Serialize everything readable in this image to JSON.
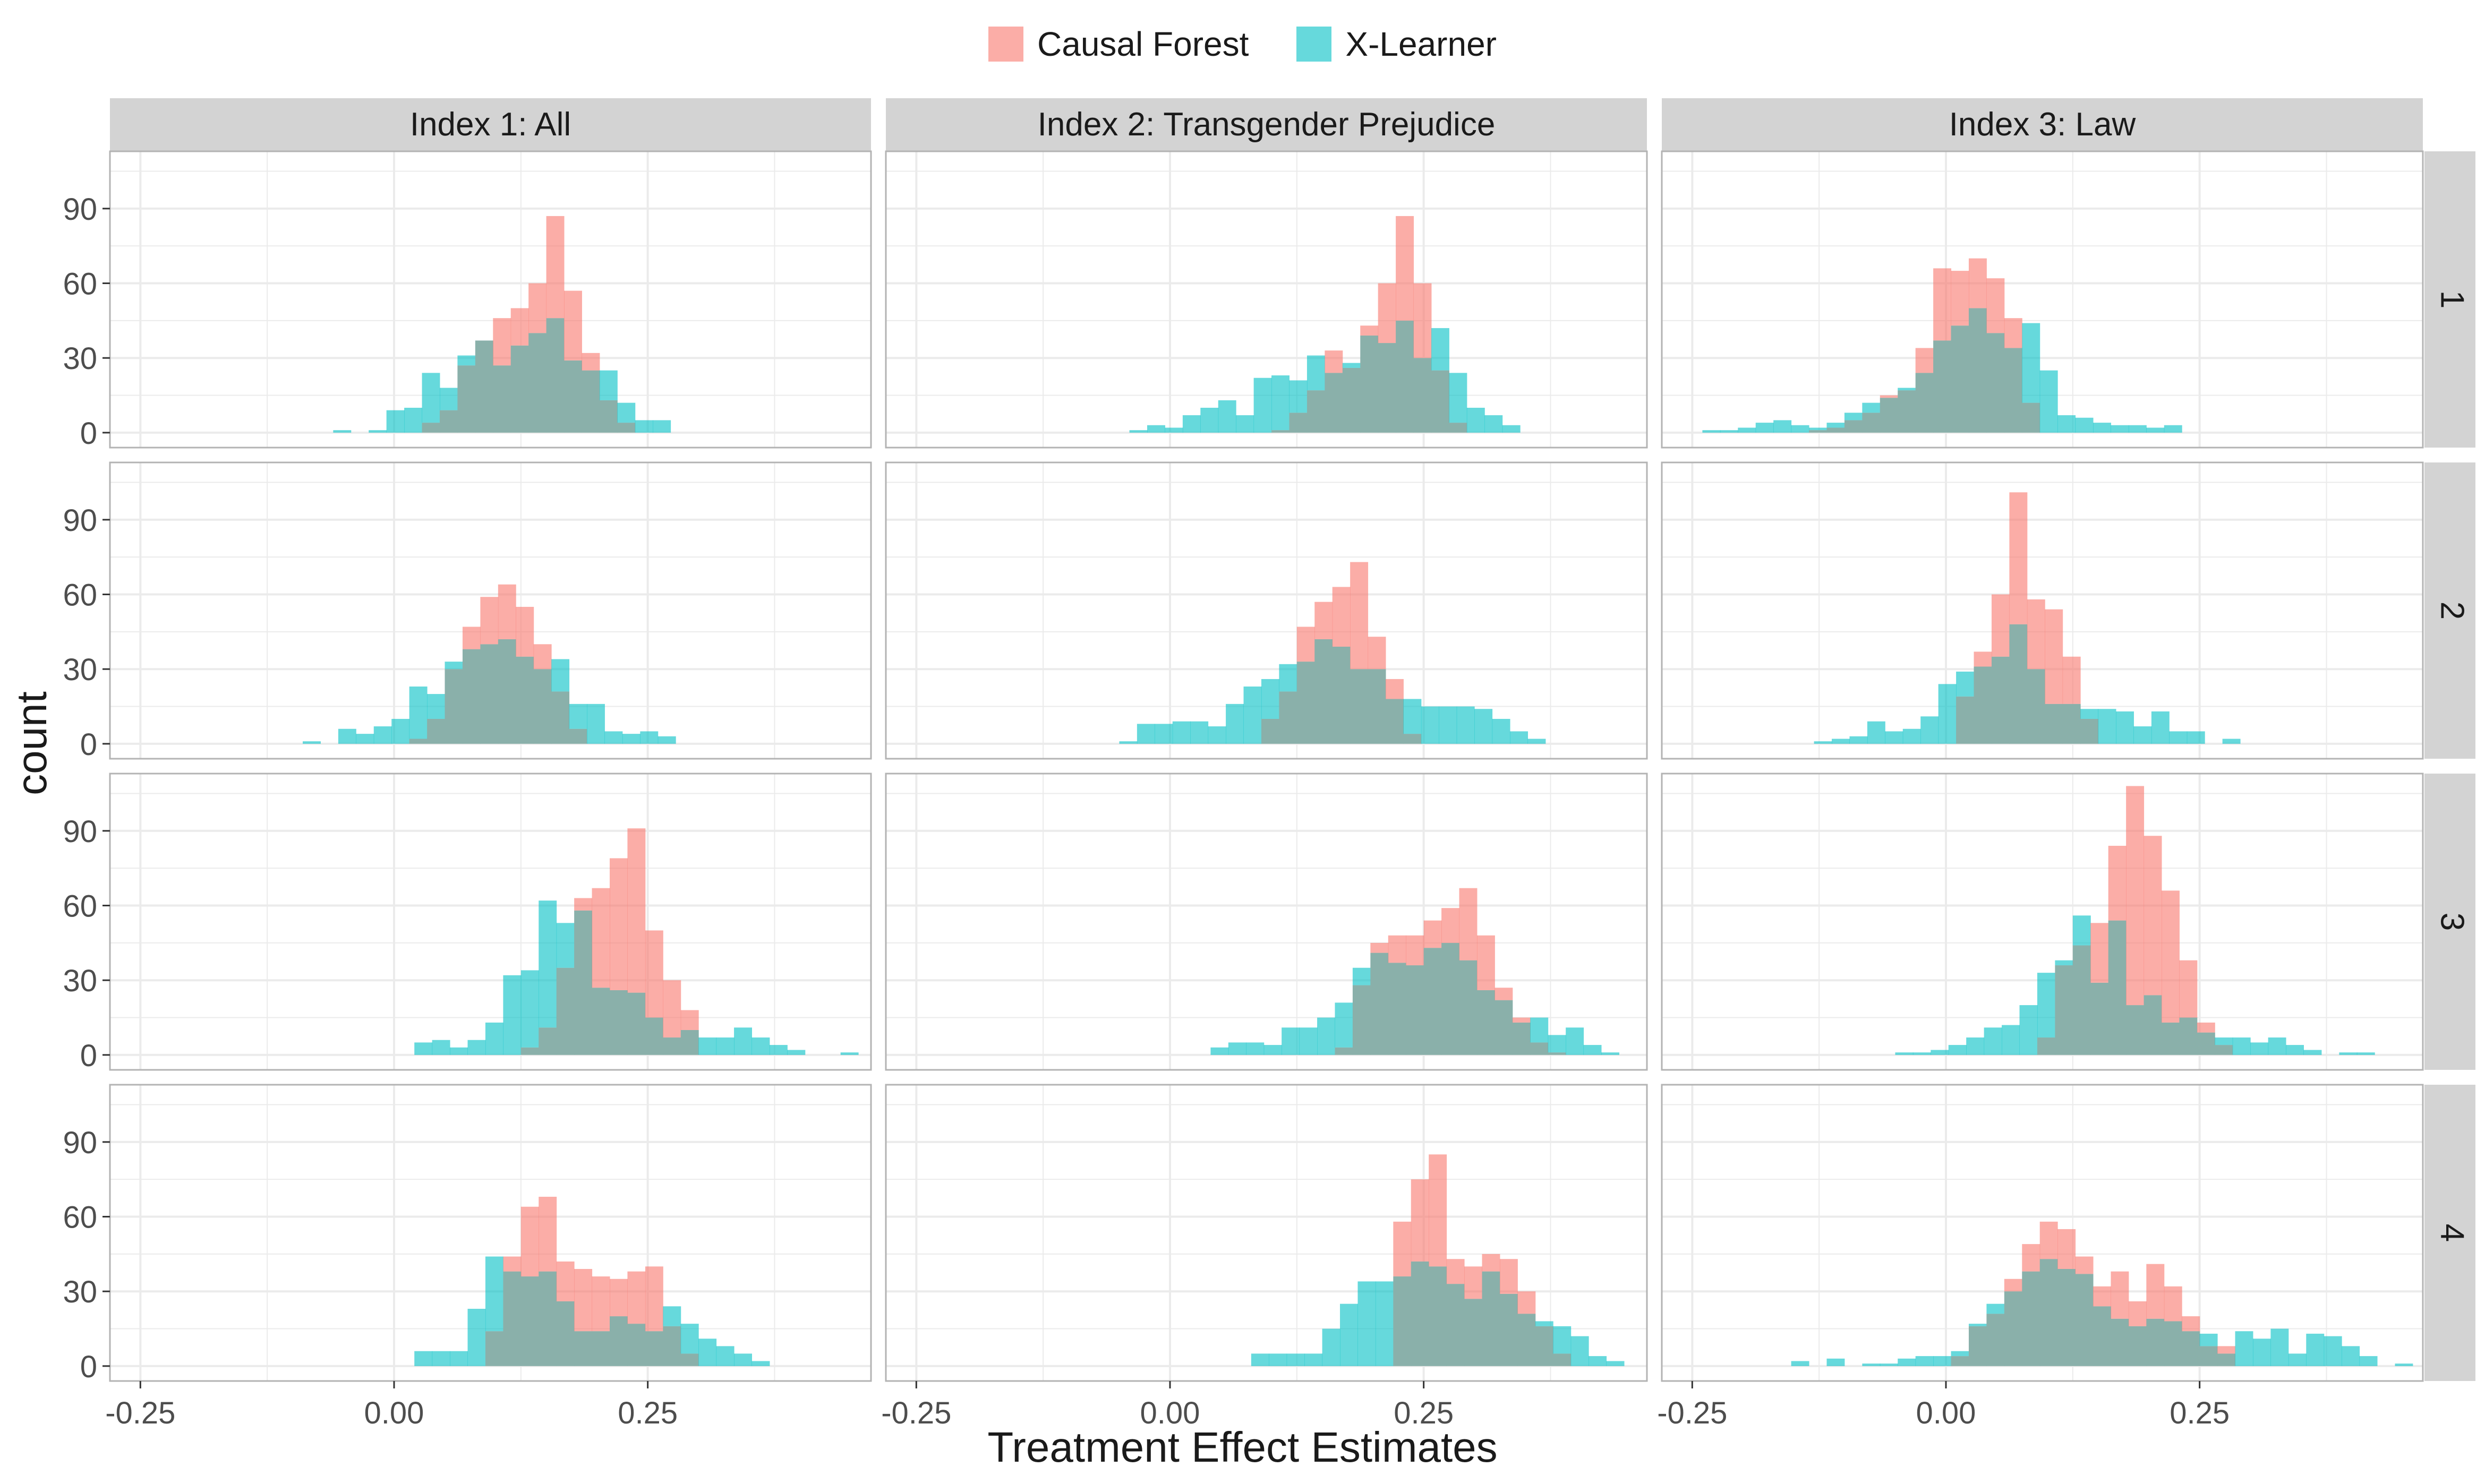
{
  "chart_data": {
    "type": "histogram",
    "xlabel": "Treatment Effect Estimates",
    "ylabel": "count",
    "xlim": [
      -0.28,
      0.47
    ],
    "ylim": [
      -6,
      113
    ],
    "xticks": [
      -0.25,
      0.0,
      0.25
    ],
    "xtick_labels": [
      "-0.25",
      "0.00",
      "0.25"
    ],
    "yticks": [
      0,
      30,
      60,
      90
    ],
    "ytick_labels": [
      "0",
      "30",
      "60",
      "90"
    ],
    "bin_width": 0.0175,
    "grid": true,
    "legend_position": "top",
    "legend": [
      "Causal Forest",
      "X-Learner"
    ],
    "colors": {
      "Causal Forest": "#F8766D",
      "X-Learner": "#00BFC4",
      "overlap": "#8AB0AA",
      "strip": "#D3D3D3",
      "grid": "#EBEBEB"
    },
    "columns": [
      "Index 1: All",
      "Index 2: Transgender Prejudice",
      "Index 3: Law"
    ],
    "rows": [
      "1",
      "2",
      "3",
      "4"
    ],
    "panels": [
      [
        {
          "start": -0.06,
          "series": [
            {
              "name": "Causal Forest",
              "values": [
                0,
                0,
                0,
                0,
                0,
                4,
                9,
                27,
                37,
                46,
                50,
                60,
                87,
                57,
                32,
                13,
                4,
                0,
                0
              ]
            },
            {
              "name": "X-Learner",
              "values": [
                1,
                0,
                1,
                9,
                10,
                24,
                18,
                31,
                37,
                27,
                35,
                40,
                46,
                29,
                25,
                25,
                12,
                5,
                5
              ]
            }
          ]
        },
        {
          "start": -0.04,
          "series": [
            {
              "name": "Causal Forest",
              "values": [
                0,
                0,
                0,
                0,
                0,
                0,
                0,
                0,
                1,
                8,
                17,
                33,
                26,
                43,
                60,
                87,
                60,
                25,
                4,
                0,
                0,
                0
              ]
            },
            {
              "name": "X-Learner",
              "values": [
                1,
                3,
                2,
                7,
                10,
                13,
                7,
                22,
                23,
                21,
                31,
                24,
                28,
                39,
                36,
                45,
                30,
                42,
                24,
                10,
                7,
                3
              ]
            }
          ]
        },
        {
          "start": -0.24,
          "series": [
            {
              "name": "Causal Forest",
              "values": [
                0,
                0,
                0,
                0,
                0,
                0,
                1,
                2,
                5,
                8,
                15,
                17,
                34,
                66,
                65,
                70,
                62,
                46,
                12,
                0,
                0,
                0,
                0,
                0,
                0,
                0,
                0
              ]
            },
            {
              "name": "X-Learner",
              "values": [
                1,
                1,
                2,
                4,
                5,
                3,
                2,
                4,
                8,
                12,
                14,
                18,
                24,
                37,
                43,
                50,
                40,
                34,
                44,
                25,
                7,
                6,
                4,
                3,
                3,
                2,
                3
              ]
            }
          ]
        }
      ],
      [
        {
          "start": -0.09,
          "series": [
            {
              "name": "Causal Forest",
              "values": [
                0,
                0,
                0,
                0,
                0,
                0,
                2,
                10,
                30,
                47,
                59,
                64,
                55,
                40,
                21,
                6,
                0,
                0,
                0,
                0,
                0
              ]
            },
            {
              "name": "X-Learner",
              "values": [
                1,
                0,
                6,
                4,
                7,
                10,
                23,
                20,
                33,
                38,
                40,
                42,
                35,
                30,
                34,
                16,
                16,
                5,
                4,
                5,
                3
              ]
            }
          ]
        },
        {
          "start": -0.05,
          "series": [
            {
              "name": "Causal Forest",
              "values": [
                0,
                0,
                0,
                0,
                0,
                0,
                0,
                0,
                10,
                21,
                47,
                57,
                63,
                73,
                43,
                26,
                4,
                0,
                0,
                0,
                0,
                0,
                0,
                0
              ]
            },
            {
              "name": "X-Learner",
              "values": [
                1,
                8,
                8,
                9,
                9,
                7,
                16,
                23,
                26,
                32,
                33,
                42,
                39,
                30,
                30,
                18,
                18,
                15,
                15,
                15,
                14,
                10,
                5,
                2
              ]
            }
          ]
        },
        {
          "start": -0.13,
          "series": [
            {
              "name": "Causal Forest",
              "values": [
                0,
                0,
                0,
                0,
                0,
                0,
                0,
                0,
                19,
                37,
                60,
                101,
                58,
                54,
                35,
                10,
                0,
                0,
                0,
                0,
                0,
                0,
                0,
                0
              ]
            },
            {
              "name": "X-Learner",
              "values": [
                1,
                2,
                3,
                9,
                5,
                6,
                11,
                24,
                29,
                31,
                35,
                48,
                30,
                16,
                16,
                14,
                14,
                13,
                7,
                13,
                5,
                5,
                0,
                2
              ]
            }
          ]
        }
      ],
      [
        {
          "start": 0.02,
          "series": [
            {
              "name": "Causal Forest",
              "values": [
                0,
                0,
                0,
                0,
                0,
                0,
                3,
                11,
                35,
                63,
                67,
                79,
                91,
                50,
                30,
                18,
                0,
                0,
                0,
                0,
                0,
                0,
                0,
                0,
                0
              ]
            },
            {
              "name": "X-Learner",
              "values": [
                5,
                6,
                3,
                6,
                13,
                32,
                34,
                62,
                53,
                58,
                27,
                26,
                25,
                15,
                7,
                10,
                7,
                7,
                11,
                7,
                4,
                2,
                0,
                0,
                1
              ]
            }
          ]
        },
        {
          "start": 0.04,
          "series": [
            {
              "name": "Causal Forest",
              "values": [
                0,
                0,
                0,
                0,
                0,
                0,
                0,
                3,
                28,
                45,
                48,
                48,
                54,
                59,
                67,
                48,
                27,
                15,
                5,
                1,
                0,
                0,
                0
              ]
            },
            {
              "name": "X-Learner",
              "values": [
                3,
                5,
                5,
                4,
                11,
                11,
                15,
                21,
                35,
                41,
                37,
                36,
                43,
                45,
                38,
                26,
                22,
                13,
                15,
                8,
                11,
                4,
                1
              ]
            }
          ]
        },
        {
          "start": -0.05,
          "series": [
            {
              "name": "Causal Forest",
              "values": [
                0,
                0,
                0,
                0,
                0,
                0,
                0,
                0,
                7,
                36,
                44,
                53,
                84,
                108,
                88,
                66,
                38,
                13,
                4,
                0,
                0,
                0,
                0,
                0,
                0,
                0,
                0
              ]
            },
            {
              "name": "X-Learner",
              "values": [
                1,
                1,
                2,
                4,
                7,
                11,
                12,
                20,
                33,
                38,
                56,
                29,
                54,
                20,
                24,
                13,
                15,
                9,
                7,
                7,
                5,
                7,
                4,
                2,
                0,
                1,
                1
              ]
            }
          ]
        }
      ],
      [
        {
          "start": 0.02,
          "series": [
            {
              "name": "Causal Forest",
              "values": [
                0,
                0,
                0,
                0,
                14,
                44,
                64,
                68,
                42,
                39,
                36,
                35,
                38,
                40,
                16,
                5,
                0,
                0,
                0,
                0
              ]
            },
            {
              "name": "X-Learner",
              "values": [
                6,
                6,
                6,
                23,
                44,
                38,
                36,
                38,
                26,
                14,
                14,
                20,
                17,
                14,
                24,
                17,
                11,
                8,
                5,
                2
              ]
            }
          ]
        },
        {
          "start": 0.08,
          "series": [
            {
              "name": "Causal Forest",
              "values": [
                0,
                0,
                0,
                0,
                0,
                0,
                0,
                0,
                58,
                75,
                85,
                43,
                40,
                45,
                43,
                30,
                16,
                5,
                0,
                0,
                0
              ]
            },
            {
              "name": "X-Learner",
              "values": [
                5,
                5,
                5,
                5,
                15,
                25,
                34,
                34,
                36,
                42,
                40,
                33,
                27,
                38,
                29,
                21,
                18,
                16,
                12,
                4,
                2
              ]
            }
          ]
        },
        {
          "start": -0.17,
          "series": [
            {
              "name": "Causal Forest",
              "values": [
                0,
                0,
                0,
                0,
                0,
                0,
                0,
                0,
                0,
                0,
                4,
                16,
                21,
                35,
                49,
                58,
                55,
                44,
                32,
                38,
                26,
                41,
                32,
                20,
                8,
                8,
                0,
                0,
                0,
                0,
                0,
                0,
                0,
                0,
                0,
                0
              ]
            },
            {
              "name": "X-Learner",
              "values": [
                0,
                2,
                0,
                3,
                0,
                1,
                1,
                3,
                4,
                4,
                6,
                17,
                25,
                30,
                38,
                43,
                39,
                37,
                24,
                19,
                16,
                19,
                18,
                14,
                13,
                5,
                14,
                11,
                15,
                5,
                13,
                12,
                8,
                4,
                0,
                1
              ]
            }
          ]
        }
      ]
    ]
  }
}
